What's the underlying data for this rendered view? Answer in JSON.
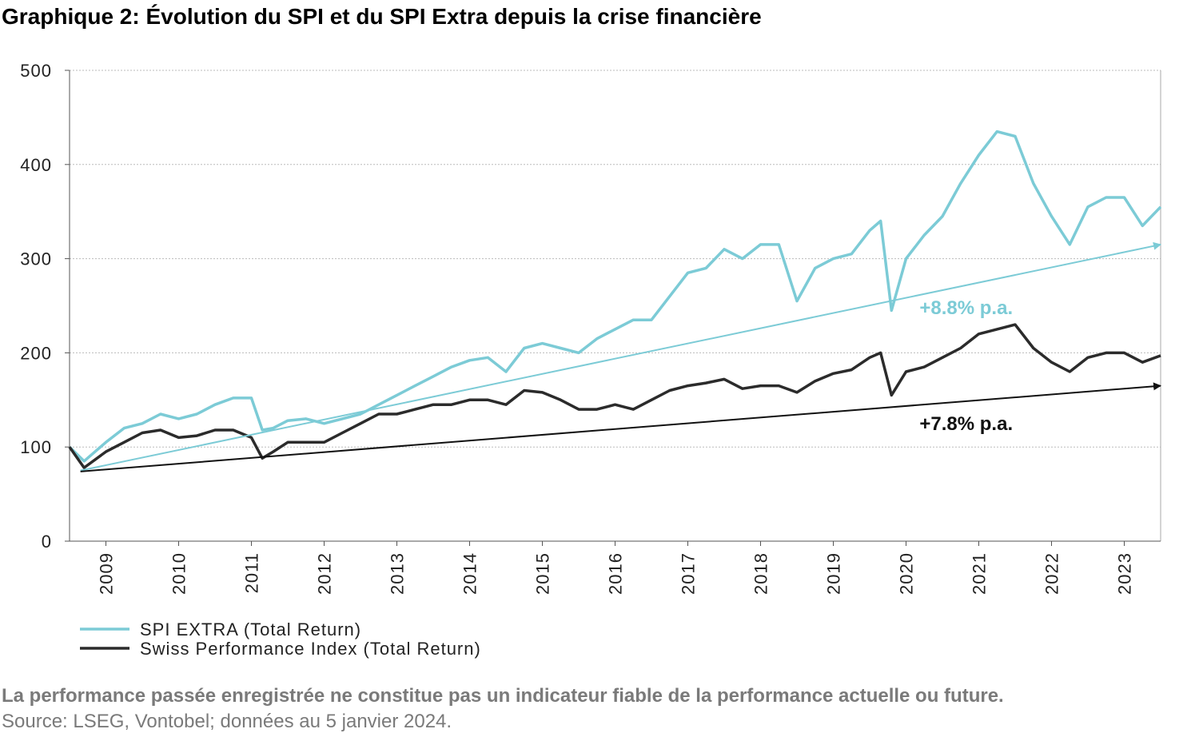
{
  "chart_data": {
    "type": "line",
    "title": "Graphique 2: Évolution du SPI et du SPI Extra depuis la crise financière",
    "x": [
      2009,
      2009.2,
      2009.5,
      2009.75,
      2010,
      2010.25,
      2010.5,
      2010.75,
      2011,
      2011.25,
      2011.5,
      2011.65,
      2011.8,
      2012,
      2012.25,
      2012.5,
      2012.75,
      2013,
      2013.25,
      2013.5,
      2013.75,
      2014,
      2014.25,
      2014.5,
      2014.75,
      2015,
      2015.25,
      2015.5,
      2015.75,
      2016,
      2016.25,
      2016.5,
      2016.75,
      2017,
      2017.25,
      2017.5,
      2017.75,
      2018,
      2018.25,
      2018.5,
      2018.75,
      2019,
      2019.25,
      2019.5,
      2019.75,
      2020,
      2020.15,
      2020.3,
      2020.5,
      2020.75,
      2021,
      2021.25,
      2021.5,
      2021.75,
      2022,
      2022.25,
      2022.5,
      2022.75,
      2023,
      2023.25,
      2023.5,
      2023.75,
      2024
    ],
    "series": [
      {
        "name": "SPI EXTRA (Total Return)",
        "color": "#7ccbd6",
        "values": [
          100,
          85,
          105,
          120,
          125,
          135,
          130,
          135,
          145,
          152,
          152,
          118,
          120,
          128,
          130,
          125,
          130,
          135,
          145,
          155,
          165,
          175,
          185,
          192,
          195,
          180,
          205,
          210,
          205,
          200,
          215,
          225,
          235,
          235,
          260,
          285,
          290,
          310,
          300,
          315,
          315,
          255,
          290,
          300,
          305,
          330,
          340,
          245,
          300,
          325,
          345,
          380,
          410,
          435,
          430,
          380,
          345,
          315,
          355,
          365,
          365,
          335,
          355
        ]
      },
      {
        "name": "Swiss Performance Index (Total Return)",
        "color": "#2b2b2b",
        "values": [
          100,
          78,
          95,
          105,
          115,
          118,
          110,
          112,
          118,
          118,
          110,
          88,
          95,
          105,
          105,
          105,
          115,
          125,
          135,
          135,
          140,
          145,
          145,
          150,
          150,
          145,
          160,
          158,
          150,
          140,
          140,
          145,
          140,
          150,
          160,
          165,
          168,
          172,
          162,
          165,
          165,
          158,
          170,
          178,
          182,
          195,
          200,
          155,
          180,
          185,
          195,
          205,
          220,
          225,
          230,
          205,
          190,
          180,
          195,
          200,
          200,
          190,
          197
        ]
      }
    ],
    "trends": [
      {
        "label": "+8.8% p.a.",
        "color": "#7ccbd6",
        "from": [
          2009.15,
          75
        ],
        "to": [
          2024,
          315
        ]
      },
      {
        "label": "+7.8% p.a.",
        "color": "#111111",
        "from": [
          2009.15,
          74
        ],
        "to": [
          2024,
          165
        ]
      }
    ],
    "xlim": [
      2009,
      2024
    ],
    "xticks": [
      {
        "value": 2009.5,
        "label": "2009"
      },
      {
        "value": 2010.5,
        "label": "2010"
      },
      {
        "value": 2011.5,
        "label": "2011"
      },
      {
        "value": 2012.5,
        "label": "2012"
      },
      {
        "value": 2013.5,
        "label": "2013"
      },
      {
        "value": 2014.5,
        "label": "2014"
      },
      {
        "value": 2015.5,
        "label": "2015"
      },
      {
        "value": 2016.5,
        "label": "2016"
      },
      {
        "value": 2017.5,
        "label": "2017"
      },
      {
        "value": 2018.5,
        "label": "2018"
      },
      {
        "value": 2019.5,
        "label": "2019"
      },
      {
        "value": 2020.5,
        "label": "2020"
      },
      {
        "value": 2021.5,
        "label": "2021"
      },
      {
        "value": 2022.5,
        "label": "2022"
      },
      {
        "value": 2023.5,
        "label": "2023"
      }
    ],
    "ylim": [
      0,
      500
    ],
    "yticks": [
      0,
      100,
      200,
      300,
      400,
      500
    ],
    "grid": true,
    "legend": "bottom-left",
    "note": "La performance passée enregistrée ne constitue pas un indicateur fiable de la performance actuelle ou future.",
    "source": "Source: LSEG, Vontobel; données au 5 janvier 2024."
  }
}
